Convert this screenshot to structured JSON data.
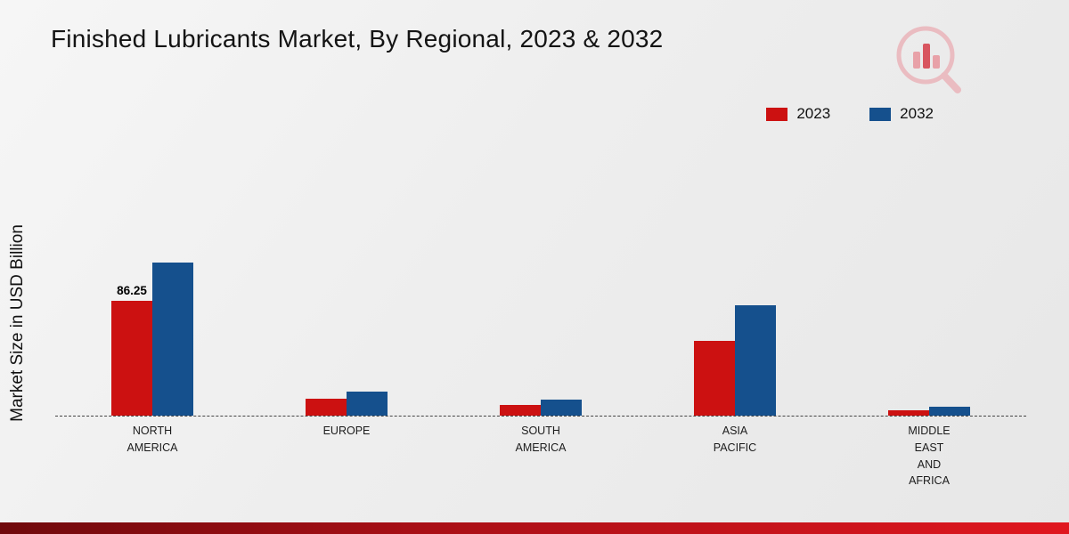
{
  "title": "Finished Lubricants Market, By Regional, 2023 & 2032",
  "chart_data": {
    "type": "bar",
    "title": "Finished Lubricants Market, By Regional, 2023 & 2032",
    "xlabel": "",
    "ylabel": "Market Size in USD Billion",
    "categories": [
      "North America",
      "Europe",
      "South America",
      "Asia Pacific",
      "Middle East and Africa"
    ],
    "category_lines": [
      [
        "NORTH",
        "AMERICA"
      ],
      [
        "EUROPE"
      ],
      [
        "SOUTH",
        "AMERICA"
      ],
      [
        "ASIA",
        "PACIFIC"
      ],
      [
        "MIDDLE",
        "EAST",
        "AND",
        "AFRICA"
      ]
    ],
    "series": [
      {
        "name": "2023",
        "color": "#cc1111",
        "values": [
          86.25,
          13,
          8,
          56,
          4
        ]
      },
      {
        "name": "2032",
        "color": "#15508d",
        "values": [
          115,
          18,
          12,
          83,
          6.5
        ]
      }
    ],
    "annotations": [
      {
        "series": "2023",
        "category": "North America",
        "text": "86.25"
      }
    ],
    "ylim": [
      0,
      120
    ],
    "grid": false,
    "legend_position": "top-right",
    "baseline_style": "dashed"
  },
  "footer": {
    "band_colors": [
      "#6f090c",
      "#e0171f"
    ]
  }
}
